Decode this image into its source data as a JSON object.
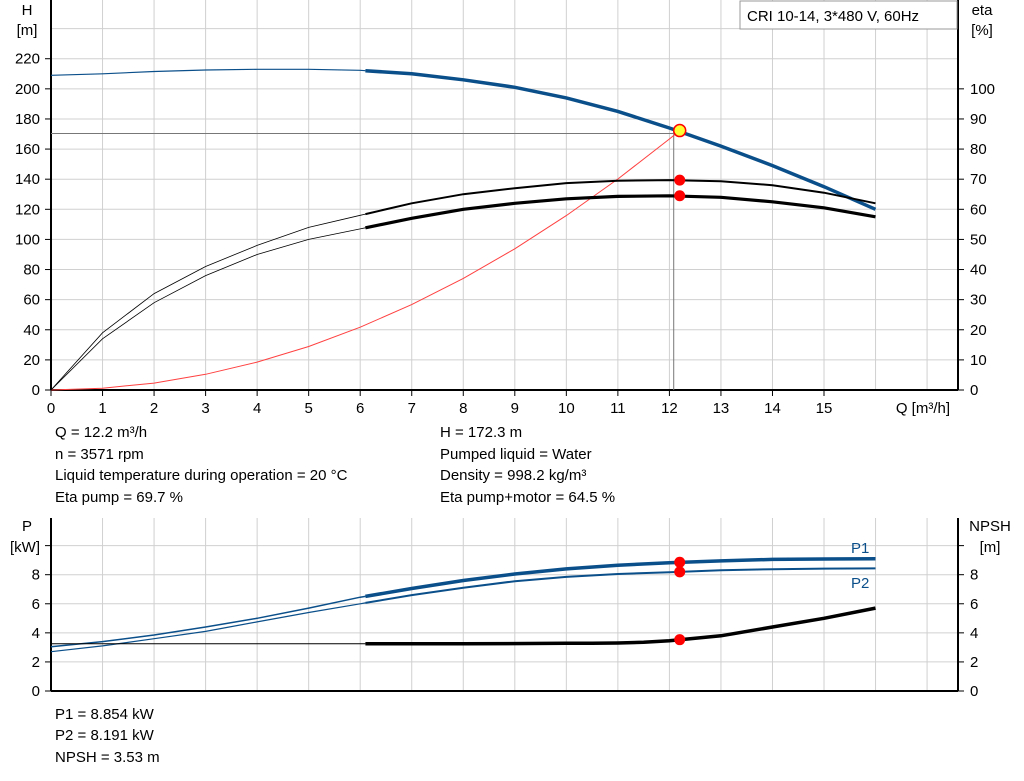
{
  "chart_data": [
    {
      "type": "line",
      "title": "CRI 10-14, 3*480 V, 60Hz",
      "xlabel": "Q [m³/h]",
      "ylabel": "H\n[m]",
      "ylabel_unit": "[m]",
      "ylabel_name": "H",
      "y2label_name": "eta",
      "y2label_unit": "[%]",
      "xlim": [
        0,
        17.6
      ],
      "ylim": [
        0,
        259
      ],
      "y2lim": [
        0,
        129.5
      ],
      "xticks": [
        0,
        1,
        2,
        3,
        4,
        5,
        6,
        7,
        8,
        9,
        10,
        11,
        12,
        13,
        14,
        15
      ],
      "yticks": [
        0,
        20,
        40,
        60,
        80,
        100,
        120,
        140,
        160,
        180,
        200,
        220
      ],
      "y2ticks": [
        0,
        10,
        20,
        30,
        40,
        50,
        60,
        70,
        80,
        90,
        100
      ],
      "grid": true,
      "operating_range_min_q": 6.1,
      "series": [
        {
          "id": "H",
          "axis": "left",
          "color": "#0b4f8a",
          "x": [
            0,
            1,
            2,
            3,
            4,
            5,
            6,
            7,
            8,
            9,
            10,
            11,
            12,
            13,
            14,
            15,
            16
          ],
          "y": [
            209,
            210,
            211.5,
            212.5,
            213,
            213,
            212.3,
            210,
            206,
            201,
            194,
            185,
            174,
            162,
            149,
            135,
            120
          ]
        },
        {
          "id": "eta-pump",
          "axis": "right",
          "color": "#000000",
          "x": [
            0,
            1,
            2,
            3,
            4,
            5,
            6,
            7,
            8,
            9,
            10,
            11,
            12,
            13,
            14,
            15,
            16
          ],
          "y": [
            0,
            19,
            32,
            41,
            48,
            54,
            58,
            62,
            65,
            67,
            68.7,
            69.5,
            69.7,
            69.3,
            68,
            65.5,
            62
          ]
        },
        {
          "id": "eta-pump-motor",
          "axis": "right",
          "color": "#000000",
          "x": [
            0,
            1,
            2,
            3,
            4,
            5,
            6,
            7,
            8,
            9,
            10,
            11,
            12,
            13,
            14,
            15,
            16
          ],
          "y": [
            0,
            17,
            29,
            38,
            45,
            50,
            53.5,
            57,
            60,
            62,
            63.5,
            64.3,
            64.5,
            64,
            62.5,
            60.5,
            57.5
          ]
        },
        {
          "id": "system",
          "axis": "left",
          "color": "#ff4040",
          "x": [
            0,
            1,
            2,
            3,
            4,
            5,
            6,
            7,
            8,
            9,
            10,
            11,
            12,
            12.2
          ],
          "y": [
            0,
            1.2,
            4.6,
            10.4,
            18.5,
            28.9,
            41.7,
            56.7,
            74.1,
            93.8,
            115.8,
            140.1,
            166.7,
            172.3
          ]
        }
      ],
      "duty_point": {
        "q": 12.2,
        "h": 172.3,
        "eta_pump": 69.7,
        "eta_total": 64.5
      }
    },
    {
      "type": "line",
      "xlabel": "",
      "ylabel_name": "P",
      "ylabel_unit": "[kW]",
      "y2label_name": "NPSH",
      "y2label_unit": "[m]",
      "xlim": [
        0,
        17.6
      ],
      "ylim": [
        0,
        11.9
      ],
      "yticks": [
        0,
        2,
        4,
        6,
        8,
        10
      ],
      "ytick_labels": [
        "0",
        "2",
        "4",
        "6",
        "8",
        ""
      ],
      "grid": true,
      "series": [
        {
          "name": "P1",
          "color": "#0b4f8a",
          "x": [
            0,
            1,
            2,
            3,
            4,
            5,
            6,
            7,
            8,
            9,
            10,
            11,
            12,
            13,
            14,
            15,
            16
          ],
          "y": [
            3.05,
            3.4,
            3.85,
            4.4,
            5.0,
            5.7,
            6.45,
            7.05,
            7.6,
            8.05,
            8.4,
            8.65,
            8.82,
            8.95,
            9.05,
            9.08,
            9.1
          ]
        },
        {
          "name": "P2",
          "color": "#0b4f8a",
          "x": [
            0,
            1,
            2,
            3,
            4,
            5,
            6,
            7,
            8,
            9,
            10,
            11,
            12,
            13,
            14,
            15,
            16
          ],
          "y": [
            2.7,
            3.1,
            3.6,
            4.1,
            4.75,
            5.4,
            6.0,
            6.6,
            7.1,
            7.55,
            7.85,
            8.05,
            8.17,
            8.3,
            8.38,
            8.42,
            8.43
          ]
        },
        {
          "id": "NPSH",
          "color": "#000000",
          "x": [
            0,
            2,
            4,
            6,
            8,
            10,
            10.5,
            11,
            11.5,
            12,
            12.2,
            13,
            14,
            15,
            16
          ],
          "y": [
            3.25,
            3.25,
            3.25,
            3.25,
            3.25,
            3.28,
            3.28,
            3.3,
            3.35,
            3.45,
            3.53,
            3.8,
            4.4,
            5.0,
            5.7
          ]
        }
      ],
      "duty_point": {
        "q": 12.2,
        "p1": 8.854,
        "p2": 8.191,
        "npsh": 3.53
      }
    }
  ],
  "info_top_left": [
    "Q = 12.2 m³/h",
    "n = 3571 rpm",
    "Liquid temperature during operation = 20 °C",
    "Eta pump = 69.7 %"
  ],
  "info_top_right": [
    "H = 172.3 m",
    "Pumped liquid = Water",
    "Density = 998.2 kg/m³",
    "Eta pump+motor = 64.5 %"
  ],
  "info_bottom": [
    "P1 = 8.854 kW",
    "P2 = 8.191 kW",
    "NPSH = 3.53 m"
  ],
  "colors": {
    "duty_point": "#ffff33",
    "marker": "#ff0000",
    "curve_blue": "#0b4f8a",
    "grid": "#d0d0d0"
  }
}
